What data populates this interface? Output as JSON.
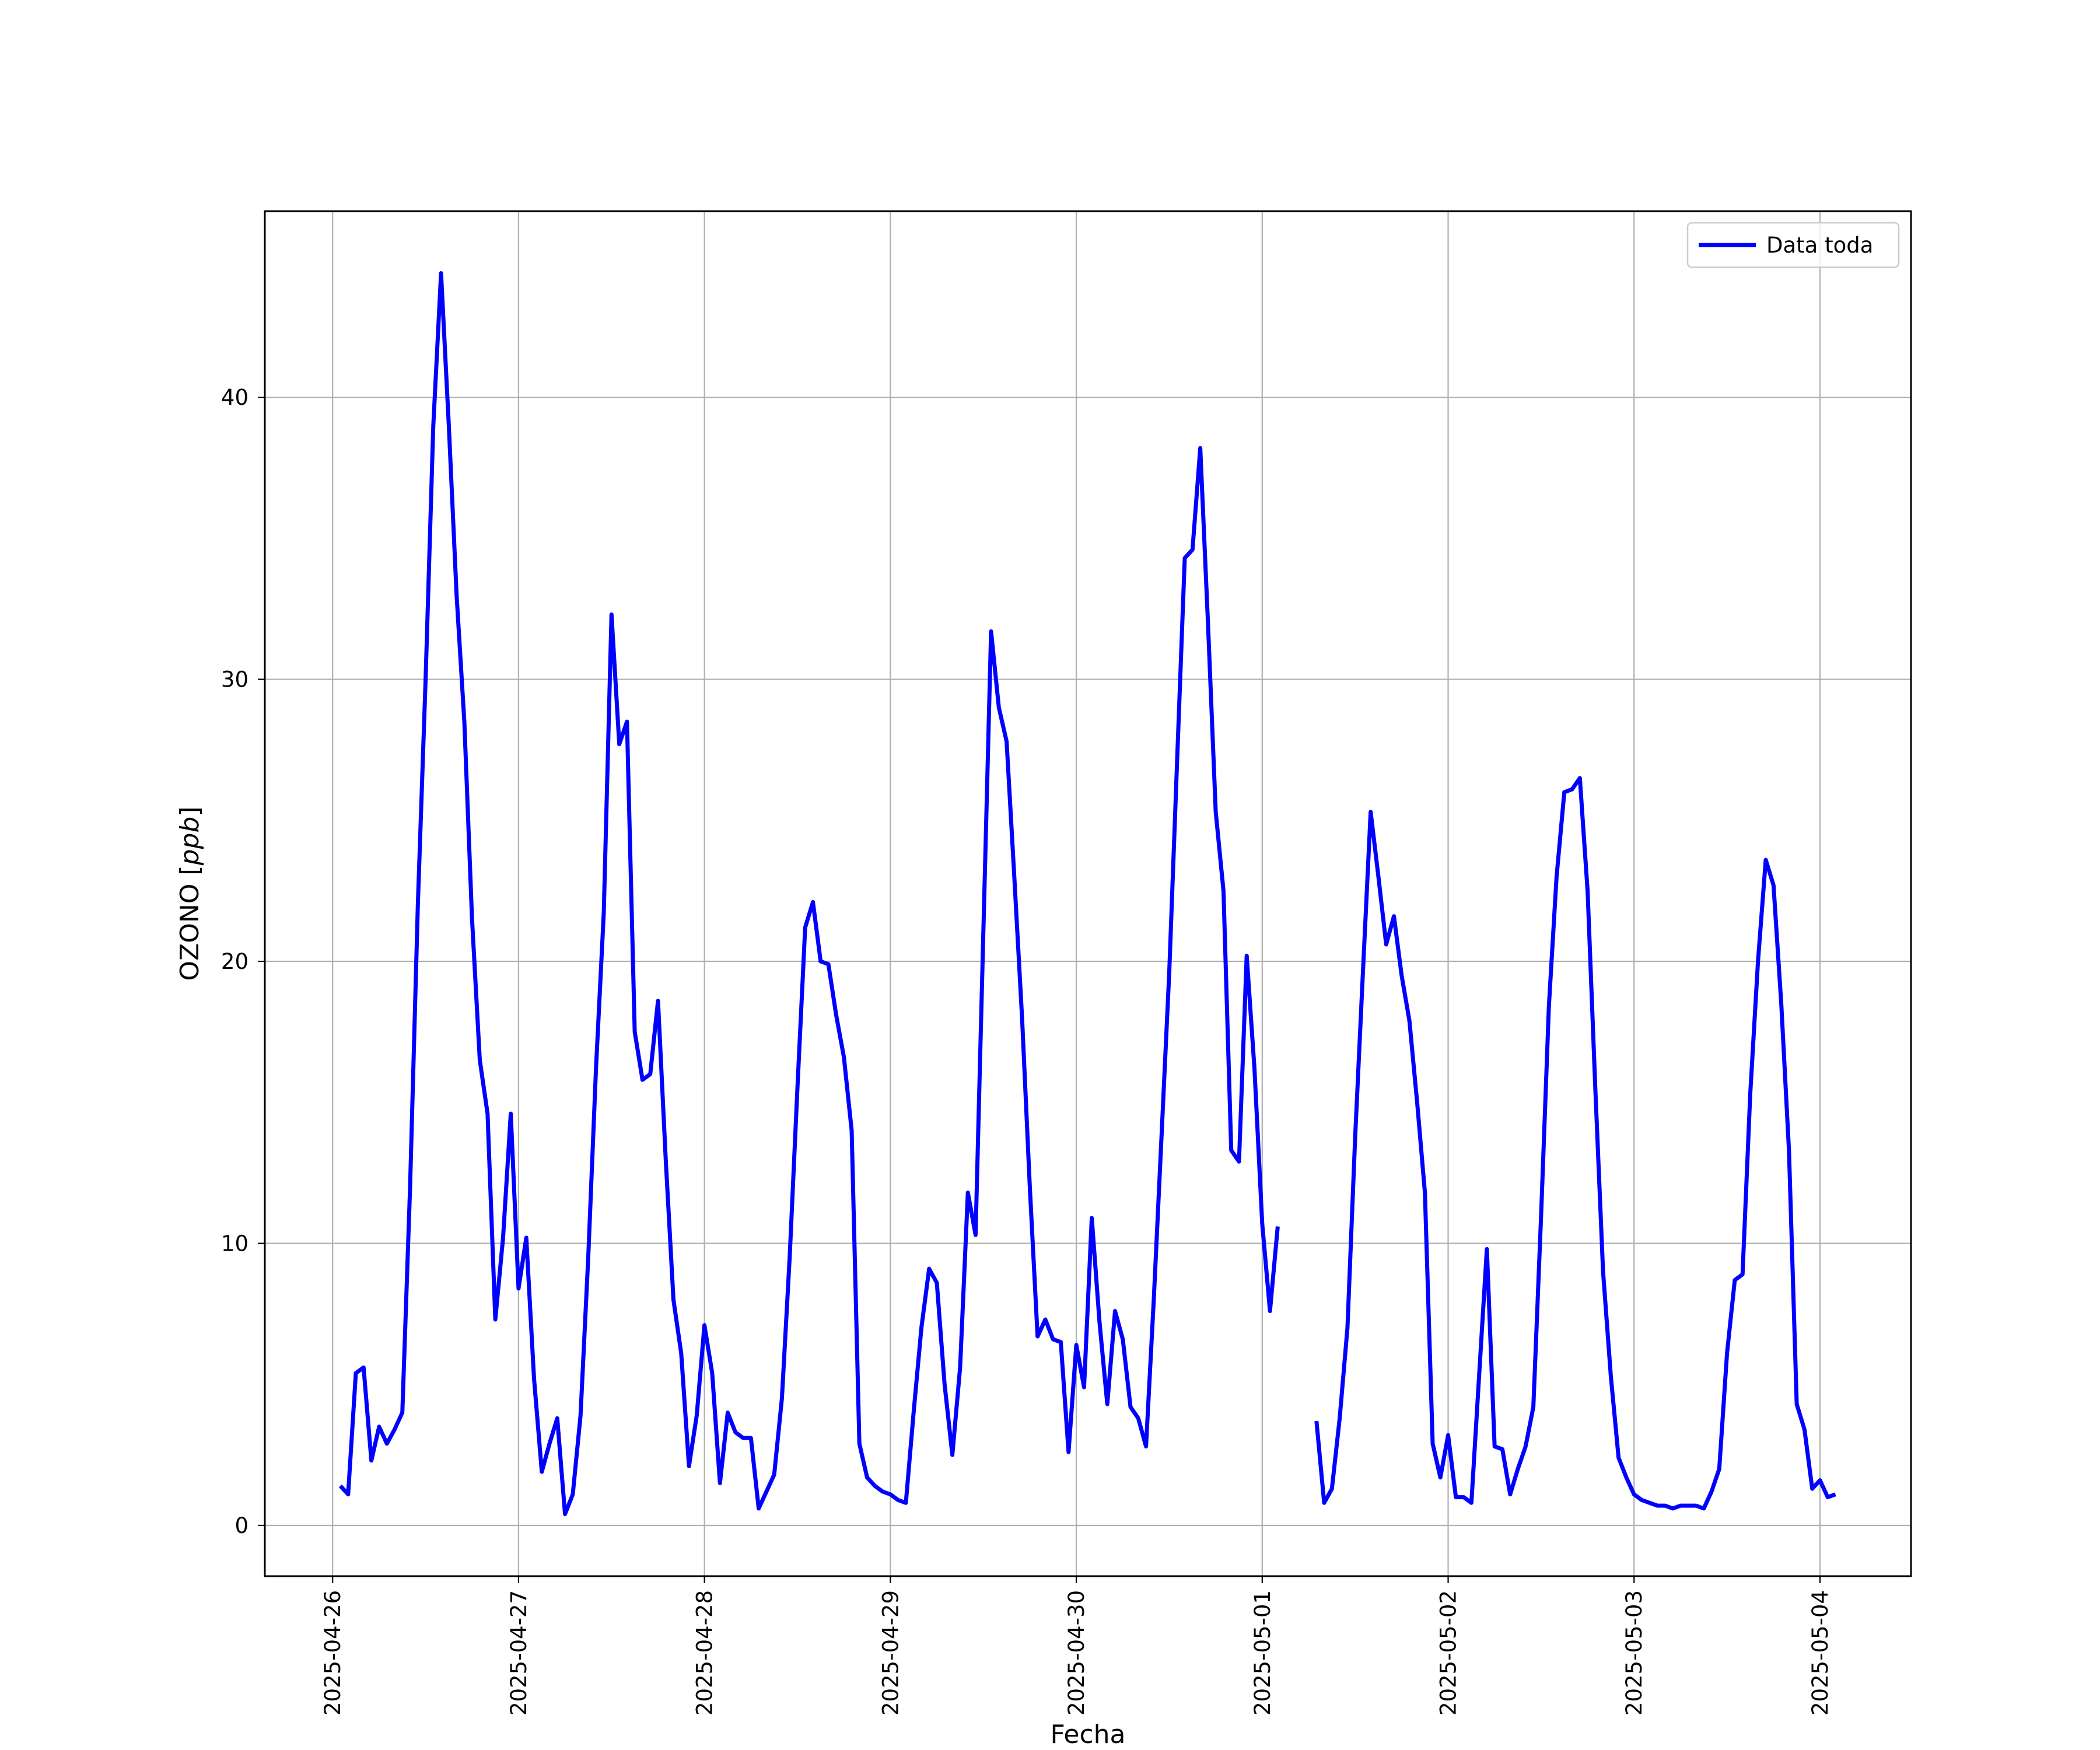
{
  "chart_data": {
    "type": "line",
    "xlabel": "Fecha",
    "ylabel_main": "OZONO",
    "ylabel_unit": "ppb",
    "xlim": [
      "2025-04-25T15:15",
      "2025-05-04T11:45"
    ],
    "ylim": [
      -1.8,
      46.6
    ],
    "xticks": [
      "2025-04-26",
      "2025-04-27",
      "2025-04-28",
      "2025-04-29",
      "2025-04-30",
      "2025-05-01",
      "2025-05-02",
      "2025-05-03",
      "2025-05-04"
    ],
    "yticks": [
      "0",
      "10",
      "20",
      "30",
      "40"
    ],
    "grid": true,
    "legend_position": "top-right",
    "series": [
      {
        "name": "Data toda",
        "color": "#0000ff",
        "start": "2025-04-26T01:00",
        "step_hours": 1,
        "values": [
          1.4,
          1.1,
          5.4,
          5.6,
          2.3,
          3.5,
          2.9,
          3.4,
          4.0,
          12.0,
          22.0,
          30.0,
          39.0,
          44.4,
          39.0,
          33.0,
          28.5,
          21.5,
          16.5,
          14.6,
          7.3,
          10.2,
          14.6,
          8.4,
          10.2,
          5.2,
          1.9,
          2.9,
          3.8,
          0.4,
          1.1,
          3.9,
          9.5,
          16.2,
          21.7,
          32.3,
          27.7,
          28.5,
          17.5,
          15.8,
          16.0,
          18.6,
          13.0,
          8.0,
          6.1,
          2.1,
          3.9,
          7.1,
          5.4,
          1.5,
          4.0,
          3.3,
          3.1,
          3.1,
          0.6,
          1.2,
          1.8,
          4.5,
          9.5,
          15.5,
          21.2,
          22.1,
          20.0,
          19.9,
          18.1,
          16.6,
          14.0,
          2.9,
          1.7,
          1.4,
          1.2,
          1.1,
          0.9,
          0.8,
          4.0,
          7.0,
          9.1,
          8.6,
          5.0,
          2.5,
          5.6,
          11.8,
          10.3,
          21.0,
          31.7,
          29.0,
          27.8,
          23.0,
          18.0,
          12.0,
          6.7,
          7.3,
          6.6,
          6.5,
          2.6,
          6.4,
          4.9,
          10.9,
          7.2,
          4.3,
          7.6,
          6.6,
          4.2,
          3.8,
          2.8,
          8.0,
          13.8,
          19.6,
          27.0,
          34.3,
          34.6,
          38.2,
          32.0,
          25.3,
          22.5,
          13.3,
          12.9,
          20.2,
          16.2,
          10.7,
          7.6,
          10.6,
          null,
          null,
          null,
          null,
          3.7,
          0.8,
          1.3,
          3.8,
          7.0,
          13.8,
          19.6,
          25.3,
          23.0,
          20.6,
          21.6,
          19.5,
          17.9,
          15.0,
          11.8,
          2.9,
          1.7,
          3.2,
          1.0,
          1.0,
          0.8,
          5.3,
          9.8,
          2.8,
          2.7,
          1.1,
          2.0,
          2.8,
          4.2,
          11.0,
          18.4,
          23.0,
          26.0,
          26.1,
          26.5,
          22.5,
          15.5,
          9.0,
          5.3,
          2.4,
          1.7,
          1.1,
          0.9,
          0.8,
          0.7,
          0.7,
          0.6,
          0.7,
          0.7,
          0.7,
          0.6,
          1.2,
          2.0,
          6.1,
          8.7,
          8.9,
          15.3,
          20.0,
          23.6,
          22.7,
          18.5,
          13.3,
          4.3,
          3.4,
          1.3,
          1.6,
          1.0,
          1.1
        ]
      }
    ]
  }
}
